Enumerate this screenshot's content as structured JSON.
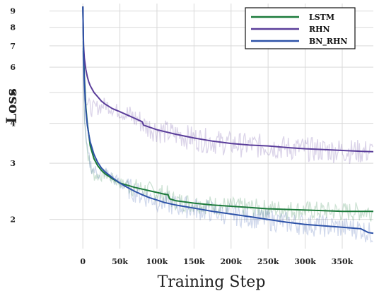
{
  "chart_data": {
    "type": "line",
    "xlabel": "Training Step",
    "ylabel": "Loss",
    "y_scale": "log",
    "xlim": [
      -45000,
      392000
    ],
    "ylim": [
      1.62,
      9.5
    ],
    "x_ticks": [
      0,
      50000,
      100000,
      150000,
      200000,
      250000,
      300000,
      350000
    ],
    "x_tick_labels": [
      "0",
      "50k",
      "100k",
      "150k",
      "200k",
      "250k",
      "300k",
      "350k"
    ],
    "y_ticks": [
      2,
      3,
      4,
      5,
      6,
      7,
      8,
      9
    ],
    "y_tick_labels": [
      "2",
      "3",
      "4",
      "5",
      "6",
      "7",
      "8",
      "9"
    ],
    "grid": true,
    "legend_position": "top-right",
    "series": [
      {
        "name": "LSTM",
        "color": "#1b7a3a",
        "x": [
          0,
          1000,
          2000,
          4000,
          6000,
          8000,
          10000,
          15000,
          20000,
          25000,
          30000,
          40000,
          50000,
          60000,
          70000,
          80000,
          90000,
          100000,
          110000,
          115000,
          117000,
          125000,
          150000,
          175000,
          200000,
          225000,
          250000,
          275000,
          300000,
          325000,
          350000,
          375000,
          392000
        ],
        "y": [
          9.3,
          6.8,
          5.6,
          4.5,
          4.0,
          3.7,
          3.4,
          3.1,
          2.95,
          2.85,
          2.78,
          2.68,
          2.6,
          2.56,
          2.52,
          2.49,
          2.46,
          2.43,
          2.4,
          2.39,
          2.32,
          2.29,
          2.25,
          2.22,
          2.2,
          2.18,
          2.16,
          2.15,
          2.14,
          2.13,
          2.12,
          2.12,
          2.12
        ]
      },
      {
        "name": "RHN",
        "color": "#5a3d9a",
        "x": [
          0,
          1000,
          2000,
          4000,
          6000,
          8000,
          10000,
          15000,
          20000,
          25000,
          30000,
          40000,
          50000,
          60000,
          70000,
          80000,
          82000,
          100000,
          125000,
          150000,
          175000,
          200000,
          225000,
          250000,
          275000,
          300000,
          325000,
          350000,
          375000,
          392000
        ],
        "y": [
          9.3,
          7.0,
          6.4,
          5.9,
          5.6,
          5.4,
          5.25,
          5.0,
          4.85,
          4.7,
          4.6,
          4.45,
          4.35,
          4.25,
          4.15,
          4.05,
          3.95,
          3.82,
          3.7,
          3.6,
          3.52,
          3.46,
          3.42,
          3.4,
          3.36,
          3.33,
          3.31,
          3.29,
          3.27,
          3.26
        ]
      },
      {
        "name": "BN_RHN",
        "color": "#2d52a8",
        "x": [
          0,
          1000,
          2000,
          4000,
          6000,
          8000,
          10000,
          15000,
          20000,
          25000,
          30000,
          40000,
          50000,
          60000,
          70000,
          80000,
          90000,
          100000,
          110000,
          125000,
          150000,
          175000,
          200000,
          225000,
          250000,
          275000,
          300000,
          325000,
          350000,
          375000,
          385000,
          392000
        ],
        "y": [
          9.3,
          6.5,
          5.4,
          4.4,
          3.95,
          3.7,
          3.5,
          3.2,
          3.02,
          2.9,
          2.82,
          2.7,
          2.6,
          2.52,
          2.45,
          2.39,
          2.34,
          2.3,
          2.26,
          2.22,
          2.17,
          2.12,
          2.08,
          2.04,
          2.0,
          1.96,
          1.93,
          1.91,
          1.89,
          1.87,
          1.82,
          1.81
        ]
      }
    ]
  }
}
